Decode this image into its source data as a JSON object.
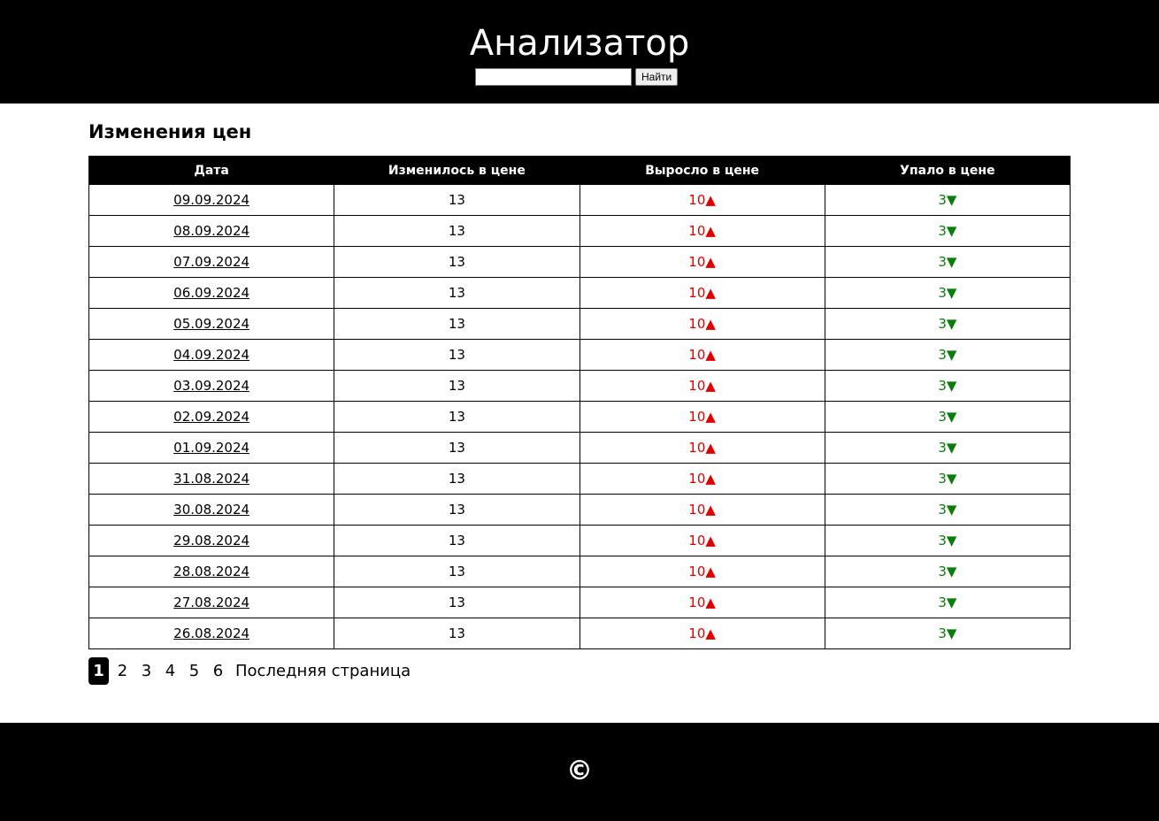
{
  "header": {
    "title": "Анализатор",
    "search": {
      "value": "",
      "placeholder": ""
    },
    "search_button_label": "Найти"
  },
  "main": {
    "section_title": "Изменения цен",
    "table": {
      "columns": [
        "Дата",
        "Изменилось в цене",
        "Выросло в цене",
        "Упало в цене"
      ],
      "up_arrow": "▲",
      "down_arrow": "▼",
      "rows": [
        {
          "date": "09.09.2024",
          "changed": "13",
          "rose": "10",
          "fell": "3"
        },
        {
          "date": "08.09.2024",
          "changed": "13",
          "rose": "10",
          "fell": "3"
        },
        {
          "date": "07.09.2024",
          "changed": "13",
          "rose": "10",
          "fell": "3"
        },
        {
          "date": "06.09.2024",
          "changed": "13",
          "rose": "10",
          "fell": "3"
        },
        {
          "date": "05.09.2024",
          "changed": "13",
          "rose": "10",
          "fell": "3"
        },
        {
          "date": "04.09.2024",
          "changed": "13",
          "rose": "10",
          "fell": "3"
        },
        {
          "date": "03.09.2024",
          "changed": "13",
          "rose": "10",
          "fell": "3"
        },
        {
          "date": "02.09.2024",
          "changed": "13",
          "rose": "10",
          "fell": "3"
        },
        {
          "date": "01.09.2024",
          "changed": "13",
          "rose": "10",
          "fell": "3"
        },
        {
          "date": "31.08.2024",
          "changed": "13",
          "rose": "10",
          "fell": "3"
        },
        {
          "date": "30.08.2024",
          "changed": "13",
          "rose": "10",
          "fell": "3"
        },
        {
          "date": "29.08.2024",
          "changed": "13",
          "rose": "10",
          "fell": "3"
        },
        {
          "date": "28.08.2024",
          "changed": "13",
          "rose": "10",
          "fell": "3"
        },
        {
          "date": "27.08.2024",
          "changed": "13",
          "rose": "10",
          "fell": "3"
        },
        {
          "date": "26.08.2024",
          "changed": "13",
          "rose": "10",
          "fell": "3"
        }
      ]
    },
    "pagination": {
      "pages": [
        "1",
        "2",
        "3",
        "4",
        "5",
        "6"
      ],
      "active_page": "1",
      "last_page_label": "Последняя страница"
    }
  },
  "footer": {
    "copyright": "©"
  },
  "colors": {
    "up": "#e00000",
    "down": "#0a7d0a",
    "header_bg": "#000000"
  }
}
